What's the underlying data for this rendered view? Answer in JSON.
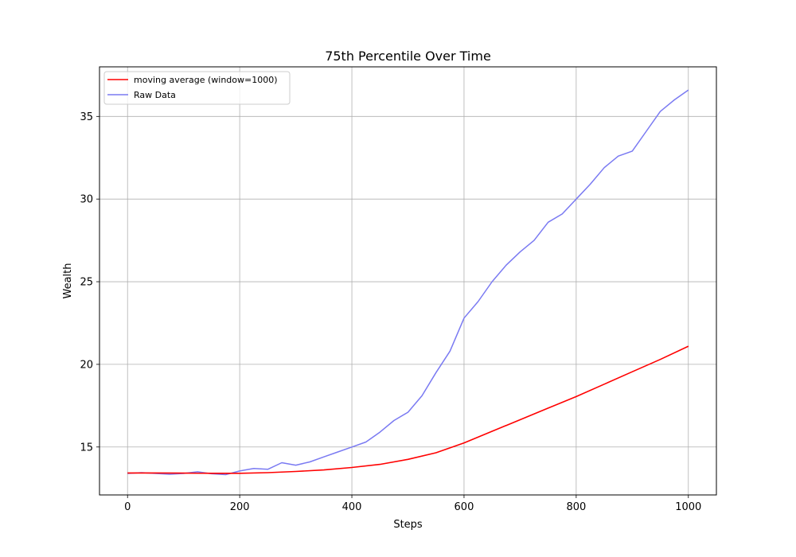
{
  "chart_data": {
    "type": "line",
    "title": "75th Percentile Over Time",
    "xlabel": "Steps",
    "ylabel": "Wealth",
    "xlim": [
      -50,
      1050
    ],
    "ylim": [
      12.1,
      38.0
    ],
    "xticks": [
      0,
      200,
      400,
      600,
      800,
      1000
    ],
    "yticks": [
      15,
      20,
      25,
      30,
      35
    ],
    "grid": true,
    "legend_position": "top-left",
    "series": [
      {
        "name": "moving average (window=1000)",
        "color": "#ff0000",
        "x": [
          0,
          50,
          100,
          150,
          200,
          250,
          300,
          350,
          400,
          450,
          500,
          550,
          600,
          650,
          700,
          750,
          800,
          850,
          900,
          950,
          1000
        ],
        "y": [
          13.43,
          13.43,
          13.42,
          13.41,
          13.41,
          13.45,
          13.52,
          13.61,
          13.76,
          13.95,
          14.25,
          14.65,
          15.25,
          15.95,
          16.65,
          17.35,
          18.05,
          18.8,
          19.55,
          20.3,
          21.1
        ]
      },
      {
        "name": "Raw Data",
        "color": "#7a7af2",
        "x": [
          0,
          25,
          50,
          75,
          100,
          125,
          150,
          175,
          200,
          225,
          250,
          275,
          300,
          325,
          350,
          375,
          400,
          425,
          450,
          475,
          500,
          525,
          550,
          575,
          600,
          625,
          650,
          675,
          700,
          725,
          750,
          775,
          800,
          825,
          850,
          875,
          900,
          925,
          950,
          975,
          1000
        ],
        "y": [
          13.4,
          13.45,
          13.4,
          13.35,
          13.4,
          13.5,
          13.38,
          13.33,
          13.55,
          13.7,
          13.65,
          14.05,
          13.9,
          14.1,
          14.4,
          14.7,
          15.0,
          15.3,
          15.9,
          16.6,
          17.1,
          18.1,
          19.5,
          20.8,
          22.8,
          23.8,
          25.0,
          26.0,
          26.8,
          27.5,
          28.6,
          29.1,
          30.0,
          30.9,
          31.9,
          32.6,
          32.9,
          34.1,
          35.3,
          36.0,
          36.6
        ]
      }
    ]
  }
}
